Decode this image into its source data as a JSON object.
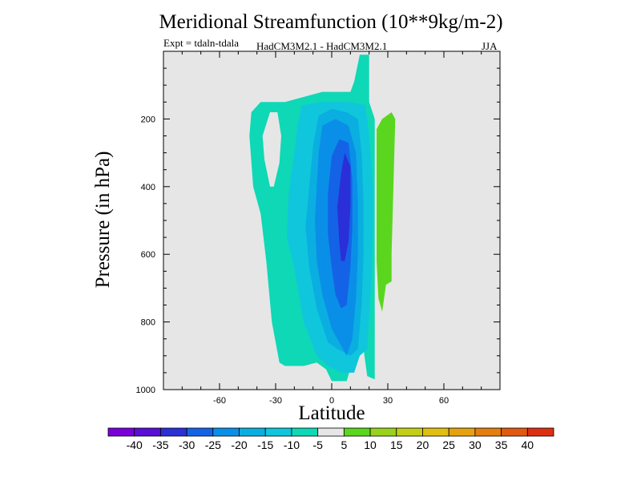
{
  "chart_data": {
    "type": "contour",
    "title": "Meridional Streamfunction (10**9kg/m-2)",
    "experiment": "Expt = tdaln-tdala",
    "models": "HadCM3M2.1 - HadCM3M2.1",
    "season": "JJA",
    "xlabel": "Latitude",
    "ylabel": "Pressure (in hPa)",
    "xlim": [
      -90,
      90
    ],
    "ylim": [
      1000,
      0
    ],
    "y_inverted": true,
    "x_ticks": [
      -60,
      -30,
      0,
      30,
      60
    ],
    "y_ticks": [
      200,
      400,
      600,
      800,
      1000
    ],
    "background_color": "#e6e6e6",
    "contour_levels": [
      -40,
      -35,
      -30,
      -25,
      -20,
      -15,
      -10,
      -5,
      5,
      10,
      15,
      20,
      25,
      30,
      35,
      40
    ],
    "colorbar_colors": [
      "#7a00d9",
      "#5a0fd6",
      "#2a2fd8",
      "#1463e6",
      "#0a8fe8",
      "#0aaee0",
      "#10c6dc",
      "#0ed8b6",
      "#e6e6e6",
      "#5ad61e",
      "#98d21a",
      "#c4ce16",
      "#e0bf10",
      "#e6a20e",
      "#e47e0e",
      "#e05a10",
      "#dc3010"
    ],
    "regions": [
      {
        "level_min": -10,
        "level_max": -5,
        "color": "#0ed8b6",
        "polygon": [
          [
            -28,
            920
          ],
          [
            -32,
            800
          ],
          [
            -35,
            620
          ],
          [
            -38,
            480
          ],
          [
            -42,
            400
          ],
          [
            -44,
            250
          ],
          [
            -43,
            180
          ],
          [
            -38,
            150
          ],
          [
            -25,
            150
          ],
          [
            -5,
            120
          ],
          [
            10,
            120
          ],
          [
            12,
            90
          ],
          [
            15,
            10
          ],
          [
            20,
            10
          ],
          [
            20,
            150
          ],
          [
            23,
            200
          ],
          [
            23,
            970
          ],
          [
            19,
            960
          ],
          [
            17,
            880
          ],
          [
            13,
            880
          ],
          [
            8,
            975
          ],
          [
            0,
            975
          ],
          [
            -3,
            940
          ],
          [
            -8,
            920
          ],
          [
            -15,
            930
          ],
          [
            -25,
            930
          ]
        ]
      },
      {
        "level_min": -15,
        "level_max": -10,
        "color": "#10c6dc",
        "polygon": [
          [
            -15,
            800
          ],
          [
            -20,
            640
          ],
          [
            -24,
            550
          ],
          [
            -23,
            420
          ],
          [
            -20,
            300
          ],
          [
            -18,
            210
          ],
          [
            -16,
            160
          ],
          [
            -5,
            150
          ],
          [
            10,
            150
          ],
          [
            18,
            160
          ],
          [
            20,
            250
          ],
          [
            22,
            400
          ],
          [
            22,
            520
          ],
          [
            21,
            700
          ],
          [
            19,
            880
          ],
          [
            15,
            900
          ],
          [
            12,
            950
          ],
          [
            5,
            950
          ],
          [
            -2,
            930
          ],
          [
            -8,
            900
          ]
        ]
      },
      {
        "level_min": -20,
        "level_max": -15,
        "color": "#0aaee0",
        "polygon": [
          [
            -8,
            760
          ],
          [
            -12,
            640
          ],
          [
            -14,
            520
          ],
          [
            -12,
            400
          ],
          [
            -10,
            280
          ],
          [
            -7,
            190
          ],
          [
            0,
            170
          ],
          [
            8,
            180
          ],
          [
            14,
            200
          ],
          [
            16,
            300
          ],
          [
            17,
            450
          ],
          [
            17,
            600
          ],
          [
            16,
            750
          ],
          [
            14,
            880
          ],
          [
            10,
            900
          ],
          [
            3,
            880
          ],
          [
            -2,
            860
          ]
        ]
      },
      {
        "level_min": -25,
        "level_max": -20,
        "color": "#0a8fe8",
        "polygon": [
          [
            -5,
            720
          ],
          [
            -8,
            620
          ],
          [
            -9,
            500
          ],
          [
            -8,
            400
          ],
          [
            -7,
            300
          ],
          [
            -5,
            220
          ],
          [
            2,
            200
          ],
          [
            9,
            220
          ],
          [
            13,
            300
          ],
          [
            14,
            450
          ],
          [
            14,
            600
          ],
          [
            13,
            730
          ],
          [
            11,
            850
          ],
          [
            8,
            900
          ],
          [
            4,
            860
          ],
          [
            0,
            820
          ]
        ]
      },
      {
        "level_min": -30,
        "level_max": -25,
        "color": "#1463e6",
        "polygon": [
          [
            0,
            640
          ],
          [
            -2,
            540
          ],
          [
            -2,
            420
          ],
          [
            0,
            310
          ],
          [
            4,
            260
          ],
          [
            9,
            270
          ],
          [
            11,
            380
          ],
          [
            11,
            520
          ],
          [
            10,
            640
          ],
          [
            8,
            750
          ],
          [
            5,
            760
          ],
          [
            2,
            720
          ]
        ]
      },
      {
        "level_min": -35,
        "level_max": -30,
        "color": "#2a2fd8",
        "polygon": [
          [
            4,
            560
          ],
          [
            3,
            460
          ],
          [
            5,
            360
          ],
          [
            7,
            300
          ],
          [
            10,
            340
          ],
          [
            10,
            460
          ],
          [
            9,
            560
          ],
          [
            7,
            620
          ],
          [
            5,
            620
          ]
        ]
      },
      {
        "level_min": 5,
        "level_max": 10,
        "color": "#5ad61e",
        "polygon": [
          [
            25,
            730
          ],
          [
            24,
            620
          ],
          [
            24,
            400
          ],
          [
            24,
            230
          ],
          [
            27,
            200
          ],
          [
            32,
            180
          ],
          [
            34,
            200
          ],
          [
            33,
            400
          ],
          [
            32,
            600
          ],
          [
            32,
            680
          ],
          [
            29,
            690
          ],
          [
            27,
            770
          ]
        ]
      }
    ],
    "holes": [
      {
        "color": "#e6e6e6",
        "polygon": [
          [
            -33,
            400
          ],
          [
            -36,
            320
          ],
          [
            -37,
            250
          ],
          [
            -33,
            180
          ],
          [
            -29,
            180
          ],
          [
            -27,
            250
          ],
          [
            -28,
            330
          ],
          [
            -31,
            400
          ]
        ]
      }
    ]
  }
}
